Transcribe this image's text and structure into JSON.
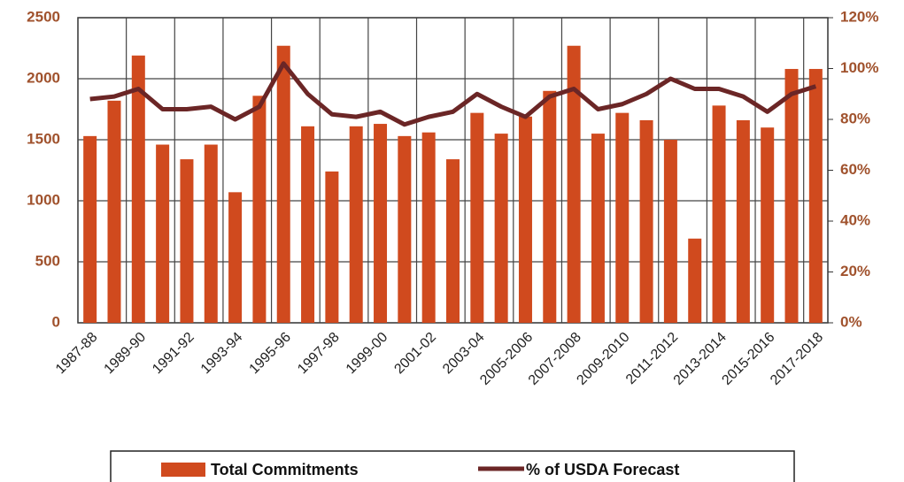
{
  "chart_data": {
    "type": "bar",
    "categories": [
      "1987-88",
      null,
      "1989-90",
      null,
      "1991-92",
      null,
      "1993-94",
      null,
      "1995-96",
      null,
      "1997-98",
      null,
      "1999-00",
      null,
      "2001-02",
      null,
      "2003-04",
      null,
      "2005-2006",
      null,
      "2007-2008",
      null,
      "2009-2010",
      null,
      "2011-2012",
      null,
      "2013-2014",
      null,
      "2015-2016",
      null,
      "2017-2018"
    ],
    "series": [
      {
        "name": "Total Commitments",
        "type": "bar",
        "color": "#d04a1e",
        "values": [
          1530,
          1820,
          2190,
          1460,
          1340,
          1460,
          1070,
          1860,
          2270,
          1610,
          1240,
          1610,
          1630,
          1530,
          1560,
          1340,
          1720,
          1550,
          1690,
          1900,
          2270,
          1550,
          1720,
          1660,
          1500,
          690,
          1780,
          1660,
          1600,
          2080,
          2080
        ]
      },
      {
        "name": "% of USDA Forecast",
        "type": "line",
        "axis": "y2",
        "color": "#6b2626",
        "values": [
          88,
          89,
          92,
          84,
          84,
          85,
          80,
          85,
          102,
          90,
          82,
          81,
          83,
          78,
          81,
          83,
          90,
          85,
          81,
          89,
          92,
          84,
          86,
          90,
          96,
          92,
          92,
          89,
          83,
          90,
          93
        ]
      }
    ],
    "ylim": [
      0,
      2500
    ],
    "yticks": [
      0,
      500,
      1000,
      1500,
      2000,
      2500
    ],
    "y2lim": [
      0,
      120
    ],
    "y2ticks": [
      {
        "value": 0,
        "label": "0%"
      },
      {
        "value": 20,
        "label": "20%"
      },
      {
        "value": 40,
        "label": "40%"
      },
      {
        "value": 60,
        "label": "60%"
      },
      {
        "value": 80,
        "label": "80%"
      },
      {
        "value": 100,
        "label": "100%"
      },
      {
        "value": 120,
        "label": "120%"
      }
    ],
    "grid": true,
    "legend": "bottom"
  }
}
